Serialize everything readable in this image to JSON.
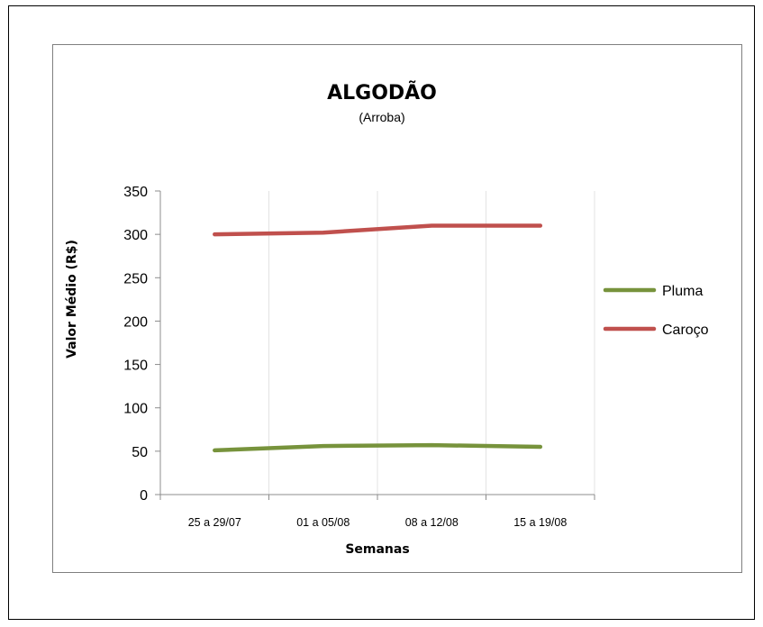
{
  "chart_data": {
    "type": "line",
    "title": "ALGODÃO",
    "subtitle": "(Arroba)",
    "xlabel": "Semanas",
    "ylabel": "Valor Médio (R$)",
    "categories": [
      "25 a 29/07",
      "01 a 05/08",
      "08 a 12/08",
      "15 a 19/08"
    ],
    "ylim": [
      0,
      350
    ],
    "yticks": [
      0,
      50,
      100,
      150,
      200,
      250,
      300,
      350
    ],
    "grid": "vertical",
    "legend": "right",
    "series": [
      {
        "name": "Pluma",
        "color": "#77933c",
        "values": [
          51,
          56,
          57,
          55
        ]
      },
      {
        "name": "Caroço",
        "color": "#c0504d",
        "values": [
          300,
          302,
          310,
          310
        ]
      }
    ]
  }
}
